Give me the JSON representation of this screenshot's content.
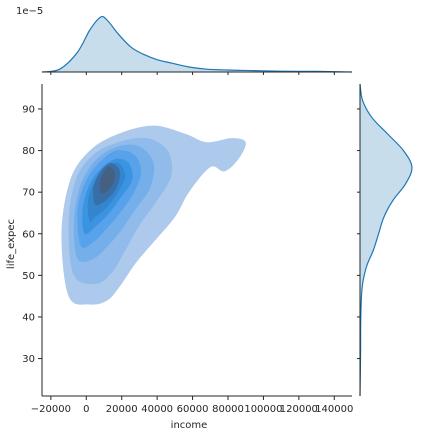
{
  "chart_data": {
    "type": "kde-joint",
    "xlabel": "income",
    "ylabel": "life_expec",
    "xlim": [
      -25000,
      150000
    ],
    "ylim": [
      21,
      96
    ],
    "x_ticks": [
      -20000,
      0,
      20000,
      40000,
      60000,
      80000,
      100000,
      120000,
      140000
    ],
    "x_tick_labels": [
      "−20000",
      "0",
      "20000",
      "40000",
      "60000",
      "80000",
      "100000",
      "120000",
      "140000"
    ],
    "y_ticks": [
      30,
      40,
      50,
      60,
      70,
      80,
      90
    ],
    "y_tick_labels": [
      "30",
      "40",
      "50",
      "60",
      "70",
      "80",
      "90"
    ],
    "marginal_x_offset_label": "1e−5",
    "fill_color": "#1f77b4",
    "line_color": "#1f77b4",
    "joint_levels": [
      {
        "level": 1,
        "opacity": 0.42,
        "points": [
          [
            -10000,
            45
          ],
          [
            -14000,
            60
          ],
          [
            -9000,
            73
          ],
          [
            2000,
            80
          ],
          [
            18000,
            84
          ],
          [
            38000,
            86
          ],
          [
            56000,
            84
          ],
          [
            68000,
            82
          ],
          [
            82000,
            83
          ],
          [
            90000,
            82
          ],
          [
            86000,
            78
          ],
          [
            78000,
            75
          ],
          [
            70000,
            76
          ],
          [
            58000,
            70
          ],
          [
            50000,
            64
          ],
          [
            38000,
            58
          ],
          [
            28000,
            53
          ],
          [
            20000,
            48
          ],
          [
            12000,
            44
          ],
          [
            2000,
            43
          ]
        ]
      },
      {
        "level": 2,
        "opacity": 0.5,
        "points": [
          [
            -7000,
            50
          ],
          [
            -10000,
            62
          ],
          [
            -6000,
            73
          ],
          [
            4000,
            79
          ],
          [
            18000,
            82
          ],
          [
            34000,
            83
          ],
          [
            46000,
            80
          ],
          [
            48000,
            74
          ],
          [
            40000,
            68
          ],
          [
            30000,
            62
          ],
          [
            22000,
            56
          ],
          [
            15000,
            51
          ],
          [
            6000,
            48
          ]
        ]
      },
      {
        "level": 3,
        "opacity": 0.55,
        "points": [
          [
            -5000,
            54
          ],
          [
            -7000,
            63
          ],
          [
            -3000,
            72
          ],
          [
            6000,
            78
          ],
          [
            18000,
            81
          ],
          [
            30000,
            81
          ],
          [
            38000,
            77
          ],
          [
            36000,
            71
          ],
          [
            28000,
            66
          ],
          [
            20000,
            61
          ],
          [
            12000,
            57
          ],
          [
            4000,
            54
          ]
        ]
      },
      {
        "level": 4,
        "opacity": 0.6,
        "points": [
          [
            -3000,
            57
          ],
          [
            -5000,
            65
          ],
          [
            -1000,
            72
          ],
          [
            7000,
            77
          ],
          [
            17000,
            80
          ],
          [
            27000,
            79
          ],
          [
            31000,
            75
          ],
          [
            27000,
            70
          ],
          [
            19000,
            65
          ],
          [
            11000,
            61
          ],
          [
            4000,
            58
          ]
        ]
      },
      {
        "level": 5,
        "opacity": 0.65,
        "points": [
          [
            -1000,
            60
          ],
          [
            -2000,
            66
          ],
          [
            2000,
            72
          ],
          [
            9000,
            76
          ],
          [
            17000,
            78
          ],
          [
            24000,
            77
          ],
          [
            26000,
            73
          ],
          [
            20000,
            69
          ],
          [
            13000,
            65
          ],
          [
            6000,
            62
          ]
        ]
      },
      {
        "level": 6,
        "opacity": 0.72,
        "points": [
          [
            2000,
            63
          ],
          [
            1000,
            68
          ],
          [
            5000,
            73
          ],
          [
            11000,
            76
          ],
          [
            18000,
            77
          ],
          [
            22000,
            74
          ],
          [
            18000,
            70
          ],
          [
            11000,
            66
          ],
          [
            5000,
            64
          ]
        ]
      },
      {
        "level": 7,
        "opacity": 0.8,
        "points": [
          [
            5000,
            67
          ],
          [
            4000,
            71
          ],
          [
            8000,
            75
          ],
          [
            14000,
            77
          ],
          [
            19000,
            75
          ],
          [
            17000,
            71
          ],
          [
            11000,
            68
          ]
        ]
      },
      {
        "level": 8,
        "opacity": 0.9,
        "points": [
          [
            8000,
            70
          ],
          [
            8000,
            73
          ],
          [
            12000,
            76
          ],
          [
            16000,
            75
          ],
          [
            15000,
            72
          ],
          [
            11000,
            70
          ]
        ]
      }
    ],
    "marginal_x": [
      [
        -25000,
        0.0
      ],
      [
        -15000,
        0.05
      ],
      [
        -5000,
        0.35
      ],
      [
        2000,
        0.75
      ],
      [
        8000,
        0.98
      ],
      [
        12000,
        0.92
      ],
      [
        18000,
        0.68
      ],
      [
        25000,
        0.45
      ],
      [
        32000,
        0.32
      ],
      [
        40000,
        0.22
      ],
      [
        48000,
        0.16
      ],
      [
        58000,
        0.09
      ],
      [
        68000,
        0.05
      ],
      [
        80000,
        0.035
      ],
      [
        95000,
        0.025
      ],
      [
        110000,
        0.015
      ],
      [
        130000,
        0.01
      ],
      [
        145000,
        0.004
      ],
      [
        150000,
        0.0
      ]
    ],
    "marginal_y": [
      [
        21,
        0.0
      ],
      [
        30,
        0.01
      ],
      [
        40,
        0.015
      ],
      [
        47,
        0.04
      ],
      [
        52,
        0.12
      ],
      [
        56,
        0.25
      ],
      [
        60,
        0.35
      ],
      [
        64,
        0.45
      ],
      [
        68,
        0.62
      ],
      [
        72,
        0.86
      ],
      [
        76,
        0.98
      ],
      [
        80,
        0.82
      ],
      [
        84,
        0.52
      ],
      [
        88,
        0.22
      ],
      [
        92,
        0.05
      ],
      [
        96,
        0.0
      ]
    ]
  }
}
